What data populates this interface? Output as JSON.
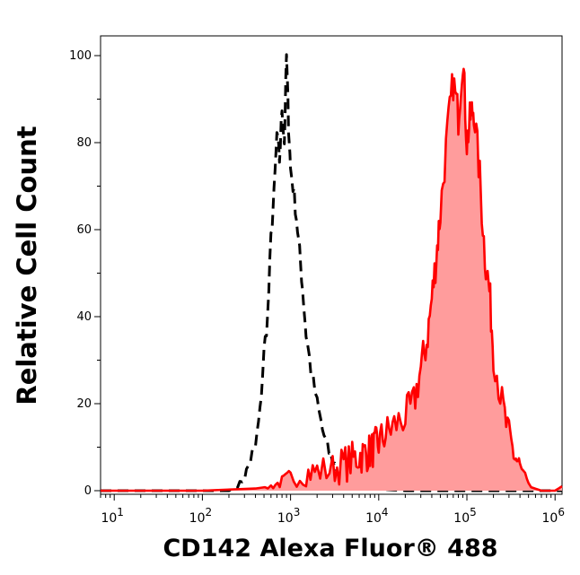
{
  "chart_data": {
    "type": "area",
    "xlabel": "CD142 Alexa Fluor® 488",
    "ylabel": "Relative Cell Count",
    "x_scale": "log",
    "xlim": [
      7,
      1200000
    ],
    "ylim": [
      0,
      100
    ],
    "x_ticks": [
      {
        "value": 10,
        "base": "10",
        "exp": "1"
      },
      {
        "value": 100,
        "base": "10",
        "exp": "2"
      },
      {
        "value": 1000,
        "base": "10",
        "exp": "3"
      },
      {
        "value": 10000,
        "base": "10",
        "exp": "4"
      },
      {
        "value": 100000,
        "base": "10",
        "exp": "5"
      },
      {
        "value": 1000000,
        "base": "10",
        "exp": "6"
      }
    ],
    "y_ticks": [
      "0",
      "20",
      "40",
      "60",
      "80",
      "100"
    ],
    "y_tick_values": [
      0,
      20,
      40,
      60,
      80,
      100
    ],
    "grid": false,
    "colors": {
      "stained_line": "#ff0000",
      "stained_fill": "#ff9c9c",
      "control_line": "#000000"
    },
    "series": [
      {
        "style": "dashed-black-line",
        "x": [
          7,
          100,
          200,
          250,
          300,
          350,
          400,
          450,
          500,
          550,
          600,
          650,
          700,
          750,
          800,
          850,
          900,
          950,
          1000,
          1100,
          1200,
          1300,
          1400,
          1500,
          1700,
          2000,
          2300,
          2600,
          3000,
          3500,
          4000,
          5000,
          6000,
          8000,
          20000,
          100000,
          1200000
        ],
        "y": [
          0,
          0,
          0,
          1,
          3,
          7,
          10,
          18,
          32,
          40,
          58,
          68,
          82,
          76,
          88,
          80,
          100,
          84,
          74,
          68,
          60,
          52,
          44,
          36,
          28,
          20,
          14,
          10,
          7,
          4,
          3,
          1.5,
          1,
          0.5,
          0,
          0,
          0
        ]
      },
      {
        "style": "red-line-filled",
        "x": [
          7,
          100,
          400,
          600,
          800,
          1000,
          1500,
          2000,
          3000,
          4000,
          5000,
          6000,
          7000,
          8000,
          9000,
          10000,
          12000,
          15000,
          20000,
          25000,
          30000,
          35000,
          40000,
          45000,
          50000,
          60000,
          70000,
          80000,
          90000,
          100000,
          110000,
          120000,
          140000,
          160000,
          180000,
          200000,
          250000,
          300000,
          350000,
          400000,
          500000,
          700000,
          1000000,
          1200000
        ],
        "y": [
          0,
          0,
          0.5,
          1,
          2,
          3,
          4,
          4.5,
          5,
          6,
          7,
          8,
          8.5,
          9,
          10,
          11,
          13,
          15,
          17,
          20,
          28,
          34,
          44,
          54,
          64,
          82,
          94,
          86,
          100,
          80,
          86,
          88,
          72,
          54,
          46,
          32,
          20,
          12,
          8,
          5,
          1,
          0,
          0,
          1
        ]
      }
    ]
  }
}
